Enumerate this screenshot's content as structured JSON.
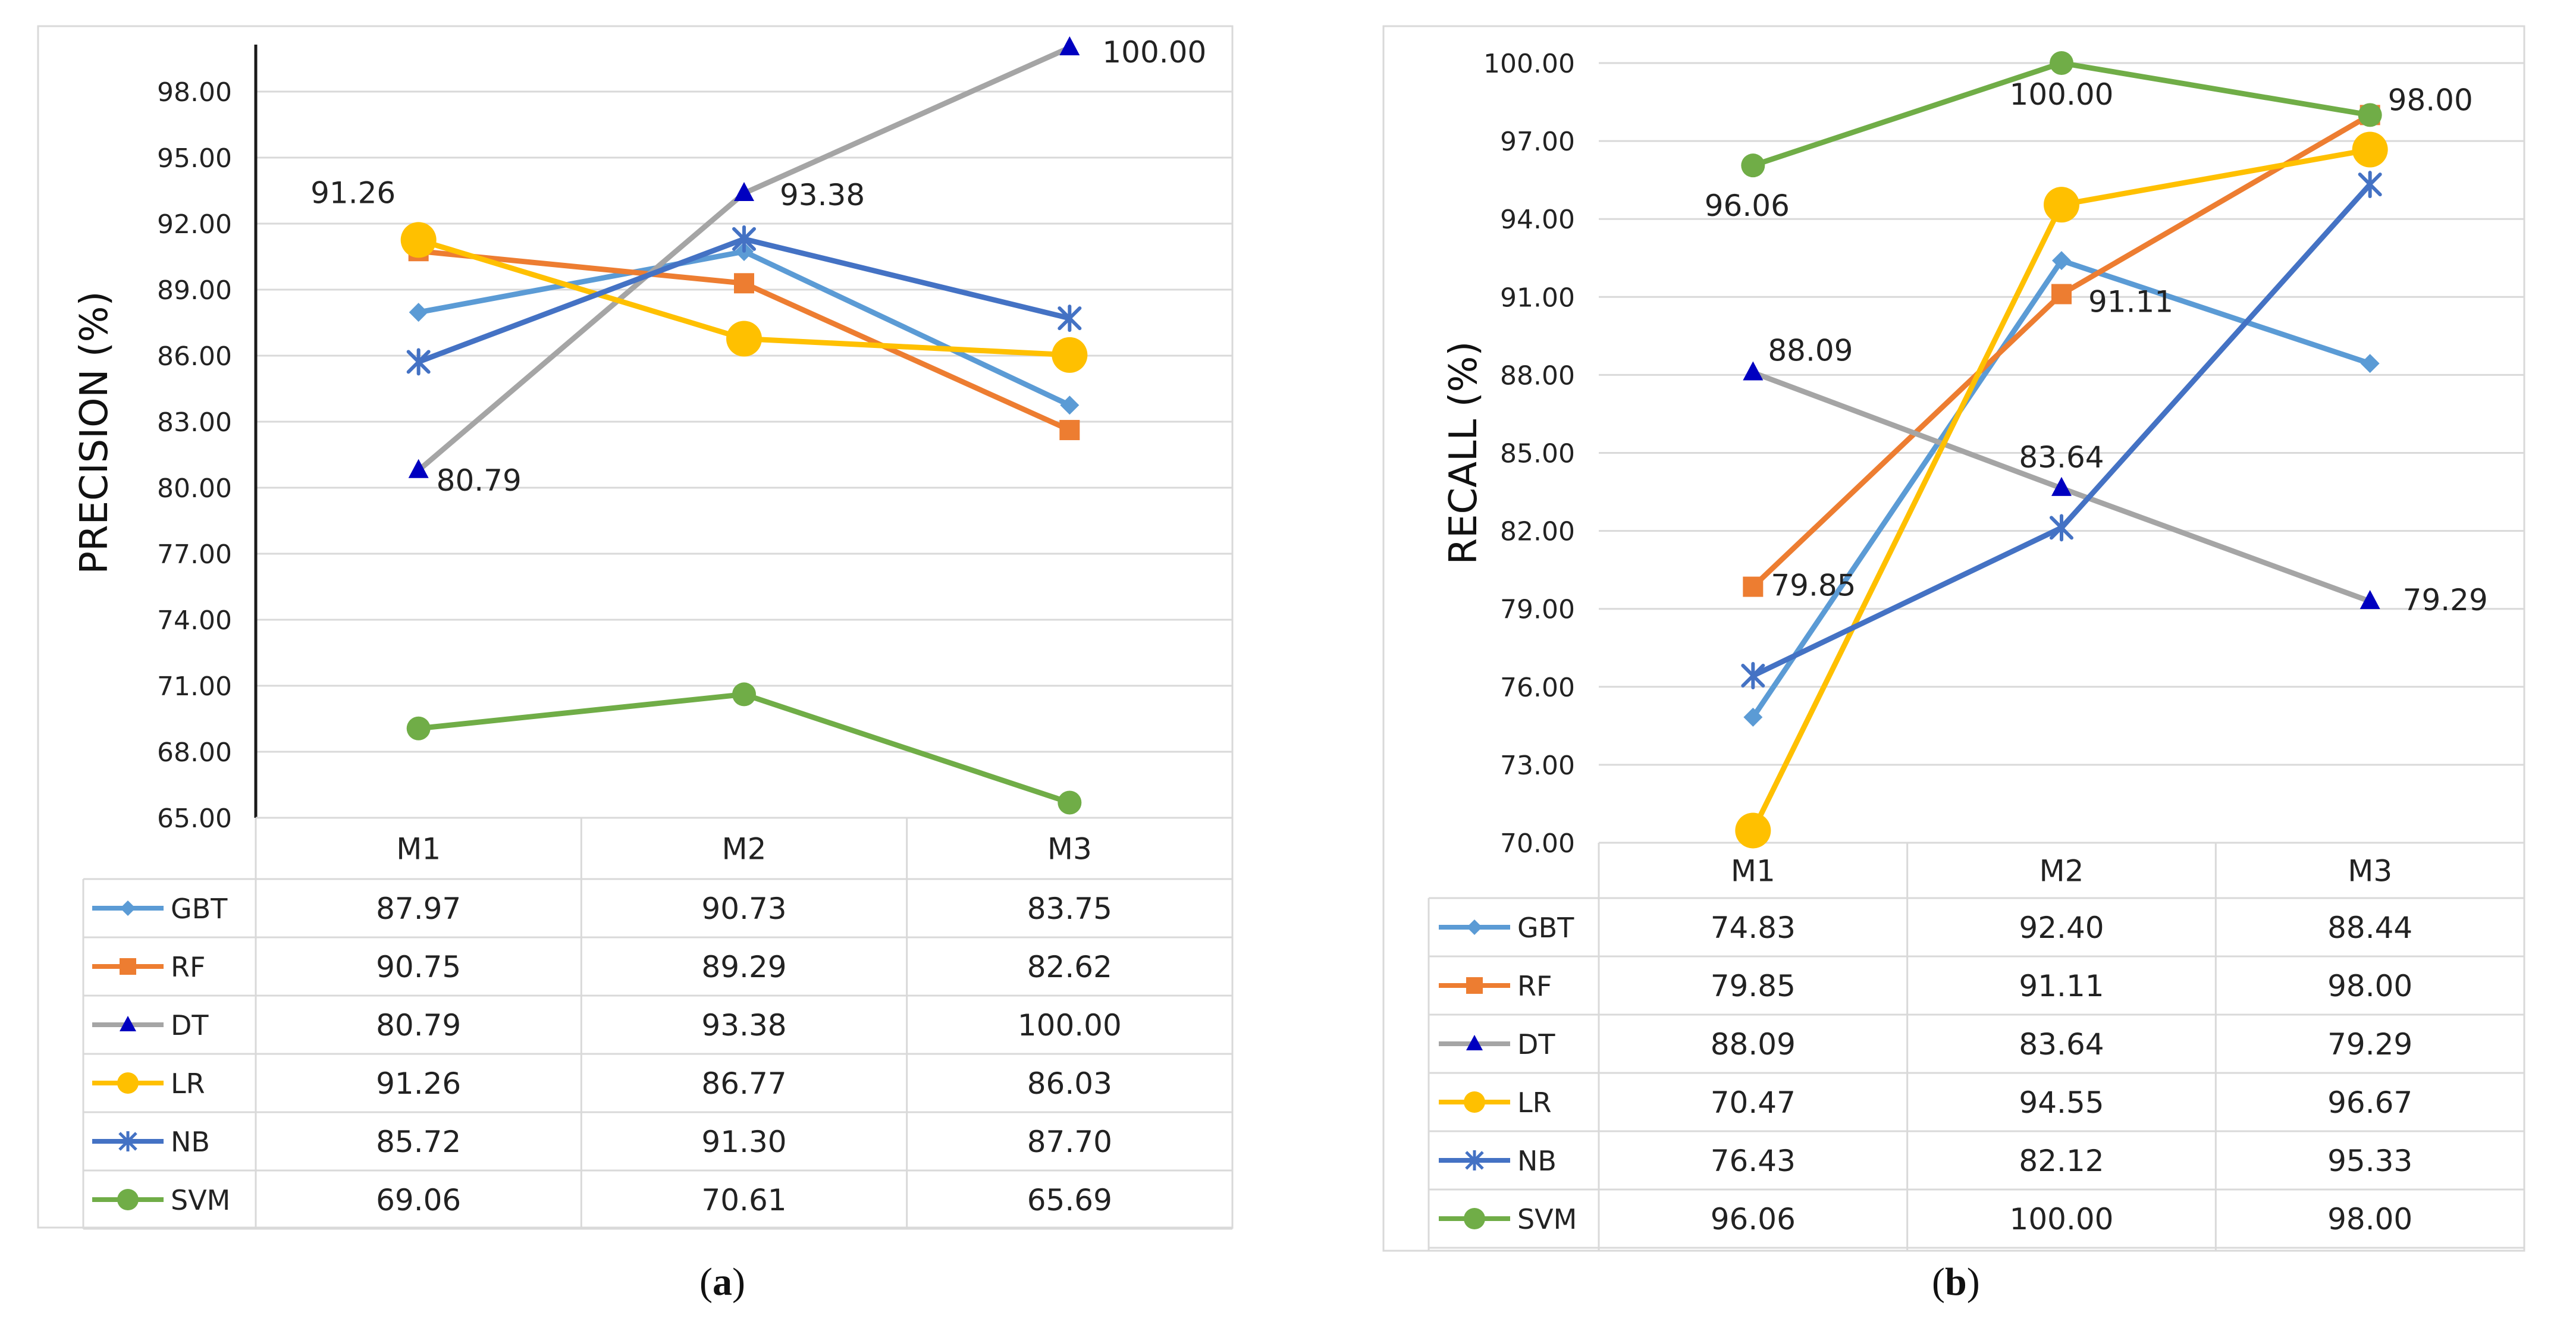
{
  "chart_data": [
    {
      "type": "line",
      "panel_label": "a",
      "ylabel": "PRECISION (%)",
      "ylim": [
        65,
        100
      ],
      "yticks": [
        "65.00",
        "68.00",
        "71.00",
        "74.00",
        "77.00",
        "80.00",
        "83.00",
        "86.00",
        "89.00",
        "92.00",
        "95.00",
        "98.00"
      ],
      "categories": [
        "M1",
        "M2",
        "M3"
      ],
      "grid": true,
      "legend": "data-table-below",
      "series": [
        {
          "name": "GBT",
          "values": [
            87.97,
            90.73,
            83.75
          ],
          "display": [
            "87.97",
            "90.73",
            "83.75"
          ],
          "color": "#5B9BD5",
          "marker": "diamond"
        },
        {
          "name": "RF",
          "values": [
            90.75,
            89.29,
            82.62
          ],
          "display": [
            "90.75",
            "89.29",
            "82.62"
          ],
          "color": "#ED7D31",
          "marker": "square"
        },
        {
          "name": "DT",
          "values": [
            80.79,
            93.38,
            100.0
          ],
          "display": [
            "80.79",
            "93.38",
            "100.00"
          ],
          "color": "#A5A5A5",
          "marker": "triangle",
          "marker_color": "#0000C0"
        },
        {
          "name": "LR",
          "values": [
            91.26,
            86.77,
            86.03
          ],
          "display": [
            "91.26",
            "86.77",
            "86.03"
          ],
          "color": "#FFC000",
          "marker": "circle"
        },
        {
          "name": "NB",
          "values": [
            85.72,
            91.3,
            87.7
          ],
          "display": [
            "85.72",
            "91.30",
            "87.70"
          ],
          "color": "#4472C4",
          "marker": "star"
        },
        {
          "name": "SVM",
          "values": [
            69.06,
            70.61,
            65.69
          ],
          "display": [
            "69.06",
            "70.61",
            "65.69"
          ],
          "color": "#70AD47",
          "marker": "circle"
        }
      ],
      "annotations": [
        {
          "text": "91.26",
          "category": "M1",
          "value": 91.26,
          "place": "above-left"
        },
        {
          "text": "80.79",
          "category": "M1",
          "value": 80.79,
          "place": "right"
        },
        {
          "text": "93.38",
          "category": "M2",
          "value": 93.38,
          "place": "right"
        },
        {
          "text": "100.00",
          "category": "M3",
          "value": 100.0,
          "place": "right"
        }
      ]
    },
    {
      "type": "line",
      "panel_label": "b",
      "ylabel": "RECALL (%)",
      "ylim": [
        70,
        100
      ],
      "yticks": [
        "70.00",
        "73.00",
        "76.00",
        "79.00",
        "82.00",
        "85.00",
        "88.00",
        "91.00",
        "94.00",
        "97.00",
        "100.00"
      ],
      "categories": [
        "M1",
        "M2",
        "M3"
      ],
      "grid": true,
      "legend": "data-table-below",
      "series": [
        {
          "name": "GBT",
          "values": [
            74.83,
            92.4,
            88.44
          ],
          "display": [
            "74.83",
            "92.40",
            "88.44"
          ],
          "color": "#5B9BD5",
          "marker": "diamond"
        },
        {
          "name": "RF",
          "values": [
            79.85,
            91.11,
            98.0
          ],
          "display": [
            "79.85",
            "91.11",
            "98.00"
          ],
          "color": "#ED7D31",
          "marker": "square"
        },
        {
          "name": "DT",
          "values": [
            88.09,
            83.64,
            79.29
          ],
          "display": [
            "88.09",
            "83.64",
            "79.29"
          ],
          "color": "#A5A5A5",
          "marker": "triangle",
          "marker_color": "#0000C0"
        },
        {
          "name": "LR",
          "values": [
            70.47,
            94.55,
            96.67
          ],
          "display": [
            "70.47",
            "94.55",
            "96.67"
          ],
          "color": "#FFC000",
          "marker": "circle"
        },
        {
          "name": "NB",
          "values": [
            76.43,
            82.12,
            95.33
          ],
          "display": [
            "76.43",
            "82.12",
            "95.33"
          ],
          "color": "#4472C4",
          "marker": "star"
        },
        {
          "name": "SVM",
          "values": [
            96.06,
            100.0,
            98.0
          ],
          "display": [
            "96.06",
            "100.00",
            "98.00"
          ],
          "color": "#70AD47",
          "marker": "circle"
        }
      ],
      "annotations": [
        {
          "text": "96.06",
          "category": "M1",
          "value": 96.06,
          "place": "below"
        },
        {
          "text": "88.09",
          "category": "M1",
          "value": 88.09,
          "place": "right-up"
        },
        {
          "text": "79.85",
          "category": "M1",
          "value": 79.85,
          "place": "right-down"
        },
        {
          "text": "100.00",
          "category": "M2",
          "value": 100.0,
          "place": "below"
        },
        {
          "text": "91.11",
          "category": "M2",
          "value": 91.11,
          "place": "right-down"
        },
        {
          "text": "83.64",
          "category": "M2",
          "value": 83.64,
          "place": "above"
        },
        {
          "text": "98.00",
          "category": "M3",
          "value": 98.0,
          "place": "right"
        },
        {
          "text": "79.29",
          "category": "M3",
          "value": 79.29,
          "place": "right"
        }
      ]
    }
  ]
}
